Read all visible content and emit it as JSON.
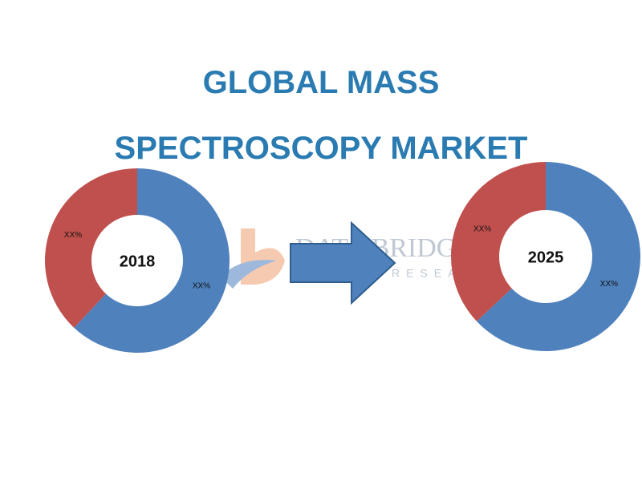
{
  "title": "GLOBAL MASS SPECTROSCOPY MARKET",
  "watermark": {
    "name": "DATA BRIDGE",
    "tagline": "MARKET RESEARCH"
  },
  "chart_data": [
    {
      "type": "donut",
      "center_label": "2018",
      "series": [
        {
          "name": null,
          "color": "#4f81bd",
          "values": [
            62
          ],
          "value_labels": [
            "XX%"
          ]
        },
        {
          "name": null,
          "color": "#c0504d",
          "values": [
            38
          ],
          "value_labels": [
            "XX%"
          ]
        }
      ]
    },
    {
      "type": "donut",
      "center_label": "2025",
      "series": [
        {
          "name": null,
          "color": "#4f81bd",
          "values": [
            63
          ],
          "value_labels": [
            "XX%"
          ]
        },
        {
          "name": null,
          "color": "#c0504d",
          "values": [
            37
          ],
          "value_labels": [
            "XX%"
          ]
        }
      ]
    }
  ]
}
